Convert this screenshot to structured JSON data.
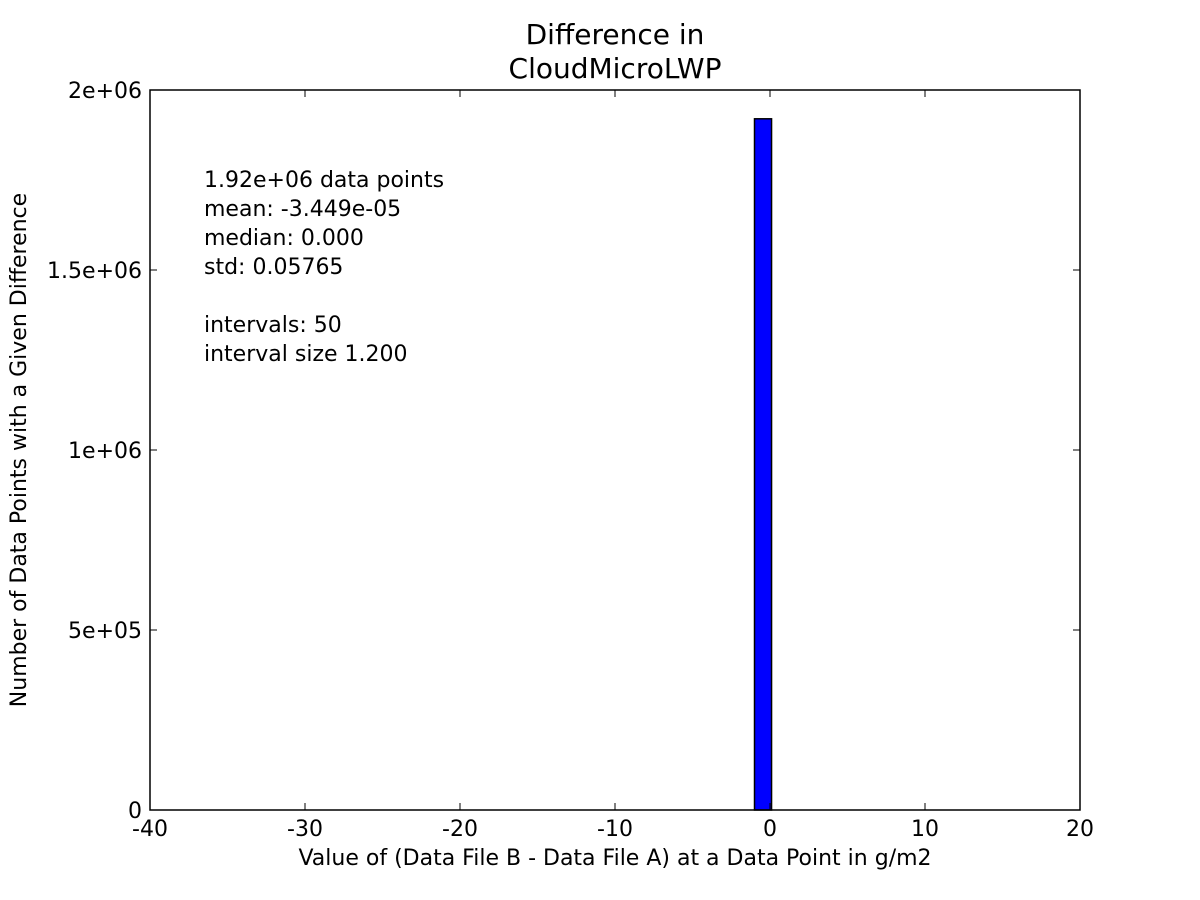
{
  "chart_data": {
    "type": "bar",
    "title_lines": [
      "Difference in",
      "CloudMicroLWP"
    ],
    "xlabel": "Value of (Data File B - Data File A) at a Data Point in g/m2",
    "ylabel": "Number of Data Points with a Given Difference",
    "xlim": [
      -40,
      20
    ],
    "ylim": [
      0,
      2000000
    ],
    "x_ticks": [
      {
        "value": -40,
        "label": "-40"
      },
      {
        "value": -30,
        "label": "-30"
      },
      {
        "value": -20,
        "label": "-20"
      },
      {
        "value": -10,
        "label": "-10"
      },
      {
        "value": 0,
        "label": "0"
      },
      {
        "value": 10,
        "label": "10"
      },
      {
        "value": 20,
        "label": "20"
      }
    ],
    "y_ticks": [
      {
        "value": 0,
        "label": "0"
      },
      {
        "value": 500000,
        "label": "5e+05"
      },
      {
        "value": 1000000,
        "label": "1e+06"
      },
      {
        "value": 1500000,
        "label": "1.5e+06"
      },
      {
        "value": 2000000,
        "label": "2e+06"
      }
    ],
    "bars": [
      {
        "x_start": -1.0,
        "x_end": 0.1,
        "value": 1920000
      }
    ],
    "bar_color": "#0000ff",
    "grid": false,
    "annotation_lines": [
      "1.92e+06 data points",
      "mean: -3.449e-05",
      "median: 0.000",
      "std: 0.05765",
      "",
      "intervals: 50",
      "interval size 1.200"
    ]
  }
}
